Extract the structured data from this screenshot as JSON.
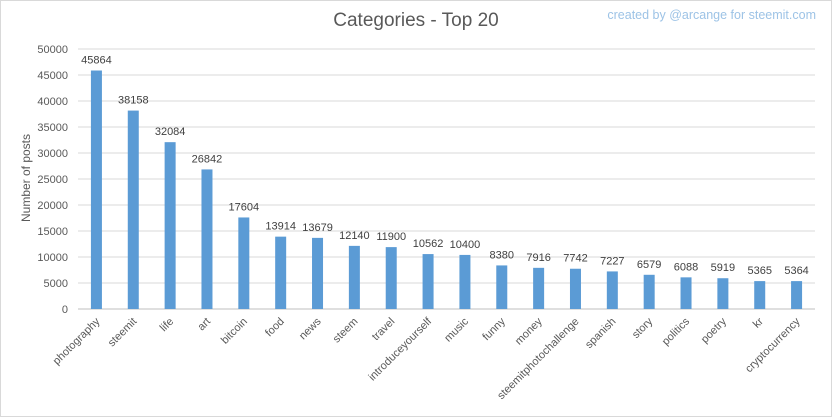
{
  "credit": "created by @arcange for steemit.com",
  "colors": {
    "bar": "#5b9bd5",
    "grid": "#d9d9d9",
    "text": "#595959"
  },
  "chart_data": {
    "type": "bar",
    "title": "Categories - Top 20",
    "xlabel": "",
    "ylabel": "Number of posts",
    "ylim": [
      0,
      50000
    ],
    "yticks": [
      0,
      5000,
      10000,
      15000,
      20000,
      25000,
      30000,
      35000,
      40000,
      45000,
      50000
    ],
    "grid": true,
    "categories": [
      "photography",
      "steemit",
      "life",
      "art",
      "bitcoin",
      "food",
      "news",
      "steem",
      "travel",
      "introduceyourself",
      "music",
      "funny",
      "money",
      "steemitphotochallenge",
      "spanish",
      "story",
      "politics",
      "poetry",
      "kr",
      "cryptocurrency"
    ],
    "values": [
      45864,
      38158,
      32084,
      26842,
      17604,
      13914,
      13679,
      12140,
      11900,
      10562,
      10400,
      8380,
      7916,
      7742,
      7227,
      6579,
      6088,
      5919,
      5365,
      5364
    ]
  }
}
